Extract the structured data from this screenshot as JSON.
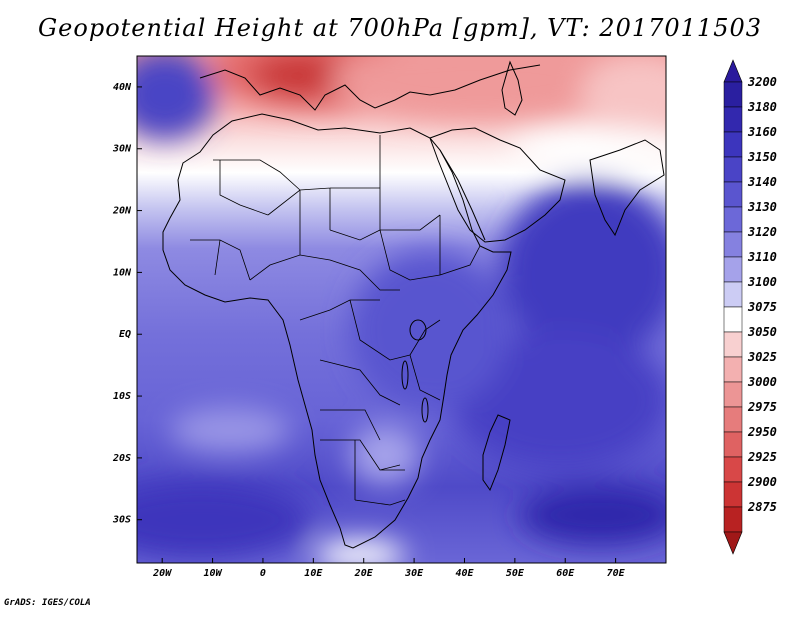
{
  "title": "Geopotential Height at 700hPa [gpm], VT: 2017011503",
  "footer": "GrADS: IGES/COLA",
  "map": {
    "lon_range": [
      -25,
      80
    ],
    "lat_range": [
      -37,
      45
    ],
    "x_ticks": [
      {
        "lon": -20,
        "label": "20W"
      },
      {
        "lon": -10,
        "label": "10W"
      },
      {
        "lon": 0,
        "label": "0"
      },
      {
        "lon": 10,
        "label": "10E"
      },
      {
        "lon": 20,
        "label": "20E"
      },
      {
        "lon": 30,
        "label": "30E"
      },
      {
        "lon": 40,
        "label": "40E"
      },
      {
        "lon": 50,
        "label": "50E"
      },
      {
        "lon": 60,
        "label": "60E"
      },
      {
        "lon": 70,
        "label": "70E"
      }
    ],
    "y_ticks": [
      {
        "lat": 40,
        "label": "40N"
      },
      {
        "lat": 30,
        "label": "30N"
      },
      {
        "lat": 20,
        "label": "20N"
      },
      {
        "lat": 10,
        "label": "10N"
      },
      {
        "lat": 0,
        "label": "EQ"
      },
      {
        "lat": -10,
        "label": "10S"
      },
      {
        "lat": -20,
        "label": "20S"
      },
      {
        "lat": -30,
        "label": "30S"
      }
    ]
  },
  "colorbar": {
    "top_arrow_color": "#2a1a9c",
    "bottom_arrow_color": "#a01818",
    "levels": [
      {
        "label": "3200",
        "color": "#2a1fa0"
      },
      {
        "label": "3180",
        "color": "#3228ae"
      },
      {
        "label": "3160",
        "color": "#3c35bd"
      },
      {
        "label": "3150",
        "color": "#4a44c6"
      },
      {
        "label": "3140",
        "color": "#5a55cf"
      },
      {
        "label": "3130",
        "color": "#6c68d8"
      },
      {
        "label": "3120",
        "color": "#8581e0"
      },
      {
        "label": "3110",
        "color": "#a5a2ea"
      },
      {
        "label": "3100",
        "color": "#ccccf4"
      },
      {
        "label": "3075",
        "color": "#ffffff"
      },
      {
        "label": "3050",
        "color": "#f8d0d0"
      },
      {
        "label": "3025",
        "color": "#f3b0b0"
      },
      {
        "label": "3000",
        "color": "#ec9595"
      },
      {
        "label": "2975",
        "color": "#e67c7c"
      },
      {
        "label": "2950",
        "color": "#df6262"
      },
      {
        "label": "2925",
        "color": "#d84848"
      },
      {
        "label": "2900",
        "color": "#cc3434"
      },
      {
        "label": "2875",
        "color": "#b82222"
      }
    ]
  }
}
